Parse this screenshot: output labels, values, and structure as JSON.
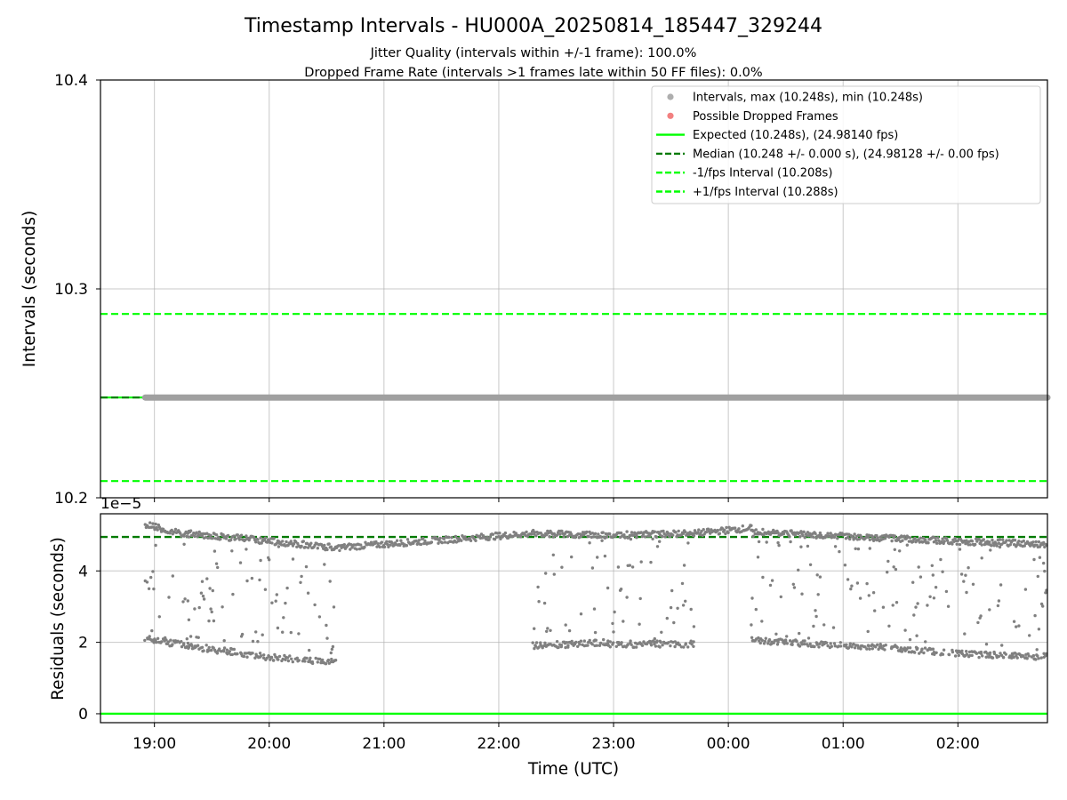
{
  "chart_data": [
    {
      "type": "scatter",
      "title": "Timestamp Intervals - HU000A_20250814_185447_329244",
      "subtitle_lines": [
        "Jitter Quality (intervals within +/-1 frame): 100.0%",
        "Dropped Frame Rate (intervals >1 frames late within 50 FF files): 0.0%"
      ],
      "xlabel": "",
      "ylabel": "Intervals (seconds)",
      "x_range_hours": [
        18.53,
        26.78
      ],
      "ylim": [
        10.2,
        10.4
      ],
      "y_ticks": [
        "10.2",
        "10.3",
        "10.4"
      ],
      "grid": true,
      "legend_position": "upper-right",
      "series": [
        {
          "name": "Intervals, max (10.248s), min (10.248s)",
          "kind": "points",
          "color": "#a0a0a0",
          "x_span_hours": [
            18.92,
            26.78
          ],
          "y": 10.248
        },
        {
          "name": "Possible Dropped Frames",
          "kind": "points",
          "color": "#f06a6a",
          "values": []
        },
        {
          "name": "Expected (10.248s), (24.98140 fps)",
          "kind": "hline",
          "y": 10.248,
          "color": "#00ff00",
          "style": "solid"
        },
        {
          "name": "Median (10.248 +/- 0.000 s), (24.98128 +/- 0.00 fps)",
          "kind": "hline",
          "y": 10.248,
          "color": "#007a00",
          "style": "dashed"
        },
        {
          "name": "-1/fps Interval (10.208s)",
          "kind": "hline",
          "y": 10.208,
          "color": "#00ff00",
          "style": "dashed"
        },
        {
          "name": "+1/fps Interval (10.288s)",
          "kind": "hline",
          "y": 10.288,
          "color": "#00ff00",
          "style": "dashed"
        }
      ]
    },
    {
      "type": "scatter",
      "ylabel": "Residuals (seconds)",
      "xlabel": "Time (UTC)",
      "offset_text": "1e−5",
      "x_range_hours": [
        18.53,
        26.78
      ],
      "ylim": [
        -0.25,
        5.6
      ],
      "y_ticks": [
        0,
        2,
        4
      ],
      "x_ticks": [
        {
          "h": 19,
          "label": "19:00"
        },
        {
          "h": 20,
          "label": "20:00"
        },
        {
          "h": 21,
          "label": "21:00"
        },
        {
          "h": 22,
          "label": "22:00"
        },
        {
          "h": 23,
          "label": "23:00"
        },
        {
          "h": 24,
          "label": "00:00"
        },
        {
          "h": 25,
          "label": "01:00"
        },
        {
          "h": 26,
          "label": "02:00"
        }
      ],
      "grid": true,
      "lines": [
        {
          "y": 0,
          "color": "#00ff00",
          "style": "solid"
        },
        {
          "y": 4.95,
          "color": "#007a00",
          "style": "dashed"
        }
      ],
      "point_color": "#808080",
      "segments": [
        {
          "x": [
            18.92,
            19.3
          ],
          "upper": [
            5.3,
            5.0
          ],
          "lower": [
            2.1,
            1.9
          ],
          "scatter": 0.45
        },
        {
          "x": [
            19.3,
            19.95
          ],
          "upper": [
            5.05,
            4.85
          ],
          "lower": [
            1.9,
            1.6
          ],
          "scatter": 0.5
        },
        {
          "x": [
            19.95,
            20.58
          ],
          "upper": [
            4.85,
            4.65
          ],
          "lower": [
            1.6,
            1.45
          ],
          "scatter": 0.55
        },
        {
          "x": [
            20.58,
            22.3
          ],
          "upper": [
            4.65,
            5.05
          ],
          "lower": null,
          "scatter": 0
        },
        {
          "x": [
            22.3,
            22.95
          ],
          "upper": [
            5.05,
            5.0
          ],
          "lower": [
            1.9,
            2.0
          ],
          "scatter": 0.35
        },
        {
          "x": [
            22.95,
            23.7
          ],
          "upper": [
            5.0,
            5.05
          ],
          "lower": [
            1.95,
            1.95
          ],
          "scatter": 0.35
        },
        {
          "x": [
            23.7,
            24.2
          ],
          "upper": [
            5.05,
            5.2
          ],
          "lower": null,
          "scatter": 0
        },
        {
          "x": [
            24.2,
            24.8
          ],
          "upper": [
            5.1,
            5.0
          ],
          "lower": [
            2.05,
            1.95
          ],
          "scatter": 0.35
        },
        {
          "x": [
            24.8,
            25.5
          ],
          "upper": [
            5.0,
            4.9
          ],
          "lower": [
            1.95,
            1.85
          ],
          "scatter": 0.35
        },
        {
          "x": [
            25.5,
            26.2
          ],
          "upper": [
            4.9,
            4.8
          ],
          "lower": [
            1.8,
            1.65
          ],
          "scatter": 0.35
        },
        {
          "x": [
            26.2,
            26.78
          ],
          "upper": [
            4.8,
            4.75
          ],
          "lower": [
            1.65,
            1.6
          ],
          "scatter": 0.35
        }
      ]
    }
  ]
}
